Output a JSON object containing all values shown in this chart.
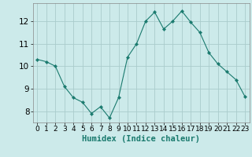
{
  "x": [
    0,
    1,
    2,
    3,
    4,
    5,
    6,
    7,
    8,
    9,
    10,
    11,
    12,
    13,
    14,
    15,
    16,
    17,
    18,
    19,
    20,
    21,
    22,
    23
  ],
  "y": [
    10.3,
    10.2,
    10.0,
    9.1,
    8.6,
    8.4,
    7.9,
    8.2,
    7.7,
    8.6,
    10.4,
    11.0,
    12.0,
    12.4,
    11.65,
    12.0,
    12.45,
    11.95,
    11.5,
    10.6,
    10.1,
    9.75,
    9.4,
    8.65
  ],
  "line_color": "#1a7a6e",
  "marker": "D",
  "marker_size": 2.2,
  "bg_color": "#cceaea",
  "grid_color": "#aacccc",
  "xlabel": "Humidex (Indice chaleur)",
  "ylim": [
    7.5,
    12.8
  ],
  "yticks": [
    8,
    9,
    10,
    11,
    12
  ],
  "xticks": [
    0,
    1,
    2,
    3,
    4,
    5,
    6,
    7,
    8,
    9,
    10,
    11,
    12,
    13,
    14,
    15,
    16,
    17,
    18,
    19,
    20,
    21,
    22,
    23
  ],
  "xlabel_fontsize": 7.5,
  "tick_fontsize": 6.5,
  "ytick_fontsize": 7.5
}
